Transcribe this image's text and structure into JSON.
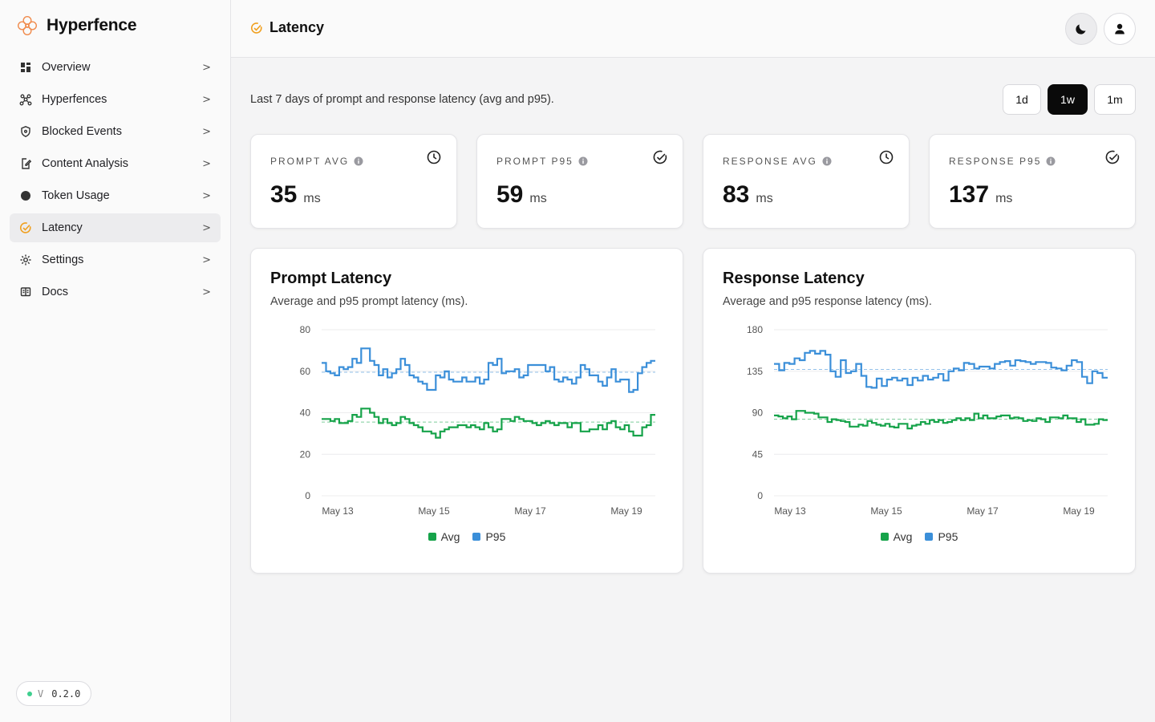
{
  "app": {
    "name": "Hyperfence",
    "version_prefix": "V",
    "version": "0.2.0"
  },
  "sidebar": {
    "items": [
      {
        "label": "Overview",
        "icon": "dashboard-icon",
        "active": false
      },
      {
        "label": "Hyperfences",
        "icon": "network-icon",
        "active": false
      },
      {
        "label": "Blocked Events",
        "icon": "shield-icon",
        "active": false
      },
      {
        "label": "Content Analysis",
        "icon": "file-edit-icon",
        "active": false
      },
      {
        "label": "Token Usage",
        "icon": "token-icon",
        "active": false
      },
      {
        "label": "Latency",
        "icon": "gauge-icon",
        "active": true
      },
      {
        "label": "Settings",
        "icon": "gear-icon",
        "active": false
      },
      {
        "label": "Docs",
        "icon": "book-icon",
        "active": false
      }
    ],
    "chevron": ">"
  },
  "header": {
    "title": "Latency"
  },
  "page": {
    "subtitle": "Last 7 days of prompt and response latency (avg and p95).",
    "ranges": [
      {
        "label": "1d",
        "active": false
      },
      {
        "label": "1w",
        "active": true
      },
      {
        "label": "1m",
        "active": false
      }
    ]
  },
  "stats": [
    {
      "label": "PROMPT AVG",
      "value": "35",
      "unit": "ms",
      "icon": "clock-icon"
    },
    {
      "label": "PROMPT P95",
      "value": "59",
      "unit": "ms",
      "icon": "gauge-icon"
    },
    {
      "label": "RESPONSE AVG",
      "value": "83",
      "unit": "ms",
      "icon": "clock-icon"
    },
    {
      "label": "RESPONSE P95",
      "value": "137",
      "unit": "ms",
      "icon": "gauge-icon"
    }
  ],
  "colors": {
    "avg": "#16a34a",
    "p95": "#3b8fd9",
    "accent": "#f0a020"
  },
  "chart_data": [
    {
      "type": "line",
      "title": "Prompt Latency",
      "subtitle": "Average and p95 prompt latency (ms).",
      "ylim": [
        0,
        80
      ],
      "yticks": [
        0,
        20,
        40,
        60,
        80
      ],
      "xticks": [
        "May 13",
        "May 15",
        "May 17",
        "May 19"
      ],
      "xticks_at": [
        1,
        4,
        7,
        10
      ],
      "xlim": [
        0.5,
        10.9
      ],
      "step": true,
      "grid": true,
      "legend": "bottom",
      "series": [
        {
          "name": "Avg",
          "mean": 35.5,
          "values": [
            37,
            37,
            36,
            37,
            35,
            35,
            36,
            39,
            38,
            42,
            42,
            40,
            38,
            35,
            37,
            35,
            34,
            35,
            38,
            37,
            35,
            34,
            33,
            31,
            31,
            30,
            28,
            31,
            32,
            33,
            33,
            34,
            34,
            33,
            34,
            33,
            32,
            35,
            33,
            31,
            32,
            37,
            37,
            36,
            38,
            37,
            36,
            36,
            35,
            34,
            35,
            36,
            35,
            34,
            35,
            35,
            33,
            35,
            35,
            31,
            31,
            32,
            32,
            34,
            32,
            35,
            36,
            33,
            32,
            34,
            31,
            29,
            29,
            33,
            34,
            39
          ]
        },
        {
          "name": "P95",
          "mean": 59.5,
          "values": [
            64,
            60,
            59,
            58,
            62,
            61,
            62,
            66,
            64,
            71,
            71,
            65,
            63,
            58,
            61,
            57,
            59,
            61,
            66,
            63,
            58,
            57,
            55,
            54,
            51,
            51,
            58,
            57,
            60,
            56,
            55,
            55,
            57,
            55,
            55,
            57,
            54,
            56,
            64,
            63,
            66,
            59,
            60,
            60,
            61,
            57,
            58,
            63,
            63,
            63,
            63,
            60,
            62,
            56,
            55,
            57,
            56,
            54,
            57,
            63,
            61,
            58,
            58,
            55,
            53,
            57,
            61,
            55,
            56,
            56,
            50,
            51,
            59,
            62,
            64,
            65
          ]
        }
      ]
    },
    {
      "type": "line",
      "title": "Response Latency",
      "subtitle": "Average and p95 response latency (ms).",
      "ylim": [
        0,
        180
      ],
      "yticks": [
        0,
        45,
        90,
        135,
        180
      ],
      "xticks": [
        "May 13",
        "May 15",
        "May 17",
        "May 19"
      ],
      "xticks_at": [
        1,
        4,
        7,
        10
      ],
      "xlim": [
        0.5,
        10.9
      ],
      "step": true,
      "grid": true,
      "legend": "bottom",
      "series": [
        {
          "name": "Avg",
          "mean": 83,
          "values": [
            87,
            86,
            84,
            86,
            83,
            92,
            92,
            90,
            90,
            89,
            85,
            85,
            80,
            83,
            82,
            81,
            80,
            75,
            75,
            77,
            76,
            81,
            79,
            77,
            76,
            78,
            75,
            74,
            78,
            78,
            73,
            76,
            77,
            80,
            78,
            82,
            80,
            82,
            79,
            80,
            82,
            84,
            82,
            84,
            82,
            89,
            84,
            87,
            84,
            84,
            86,
            87,
            87,
            84,
            85,
            84,
            81,
            82,
            81,
            84,
            83,
            80,
            85,
            85,
            84,
            87,
            84,
            84,
            80,
            83,
            77,
            77,
            78,
            83,
            82
          ]
        },
        {
          "name": "P95",
          "mean": 137,
          "values": [
            143,
            136,
            144,
            143,
            149,
            147,
            155,
            157,
            154,
            157,
            153,
            135,
            129,
            147,
            133,
            135,
            143,
            130,
            118,
            117,
            127,
            119,
            126,
            128,
            125,
            127,
            120,
            128,
            125,
            130,
            126,
            128,
            132,
            125,
            135,
            138,
            136,
            144,
            143,
            138,
            140,
            140,
            138,
            143,
            145,
            146,
            141,
            147,
            146,
            145,
            143,
            145,
            145,
            144,
            139,
            138,
            136,
            141,
            147,
            145,
            129,
            122,
            135,
            133,
            128
          ]
        }
      ]
    }
  ]
}
